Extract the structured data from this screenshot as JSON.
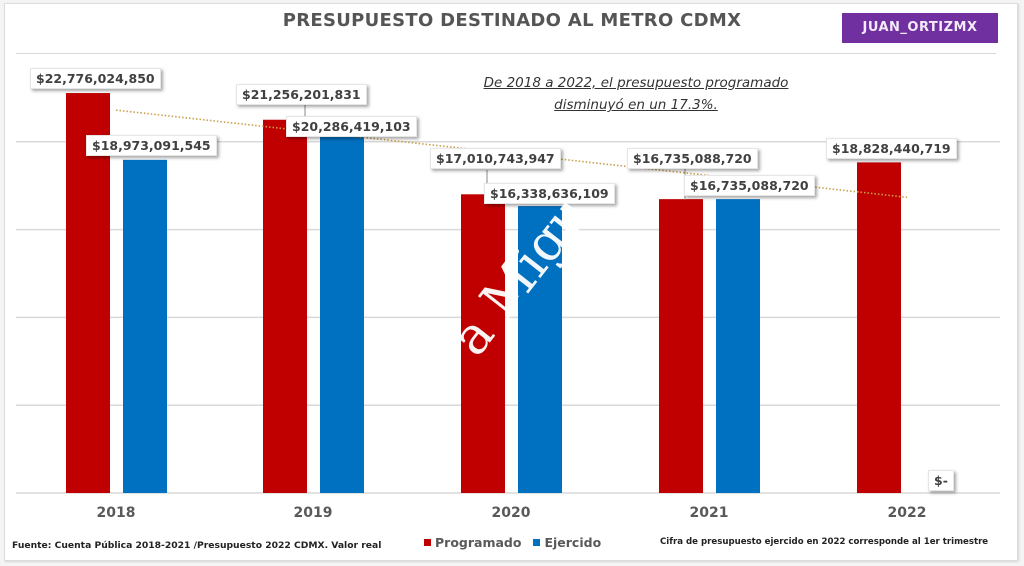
{
  "header": {
    "title": "PRESUPUESTO DESTINADO AL METRO CDMX",
    "brand": "JUAN_ORTIZMX",
    "brand_color": "#7030a0"
  },
  "annotation": {
    "line1": "De 2018 a 2022, el presupuesto programado",
    "line2": "disminuyó en un 17.3%."
  },
  "watermark": "a Migu",
  "chart_data": {
    "type": "bar",
    "title": "PRESUPUESTO DESTINADO AL METRO CDMX",
    "xlabel": "",
    "ylabel": "",
    "categories": [
      "2018",
      "2019",
      "2020",
      "2021",
      "2022"
    ],
    "ylim": [
      0,
      25000000000
    ],
    "grid": true,
    "gridlines": [
      0,
      5000000000,
      10000000000,
      15000000000,
      20000000000
    ],
    "legend_position": "bottom",
    "series": [
      {
        "name": "Programado",
        "color": "#c00000",
        "values": [
          22776024850,
          21256201831,
          17010743947,
          16735088720,
          18828440719
        ],
        "labels": [
          "$22,776,024,850",
          "$21,256,201,831",
          "$17,010,743,947",
          "$16,735,088,720",
          "$18,828,440,719"
        ]
      },
      {
        "name": "Ejercido",
        "color": "#0070c0",
        "values": [
          18973091545,
          20286419103,
          16338636109,
          16735088720,
          0
        ],
        "labels": [
          "$18,973,091,545",
          "$20,286,419,103",
          "$16,338,636,109",
          "$16,735,088,720",
          "$-"
        ]
      }
    ],
    "trendline": {
      "series": "Programado",
      "style": "dotted",
      "color": "#c8a04a"
    }
  },
  "footer": {
    "source": "Fuente: Cuenta Pública 2018-2021 /Presupuesto 2022 CDMX. Valor real",
    "note": "Cifra de presupuesto ejercido en 2022 corresponde al 1er trimestre"
  }
}
